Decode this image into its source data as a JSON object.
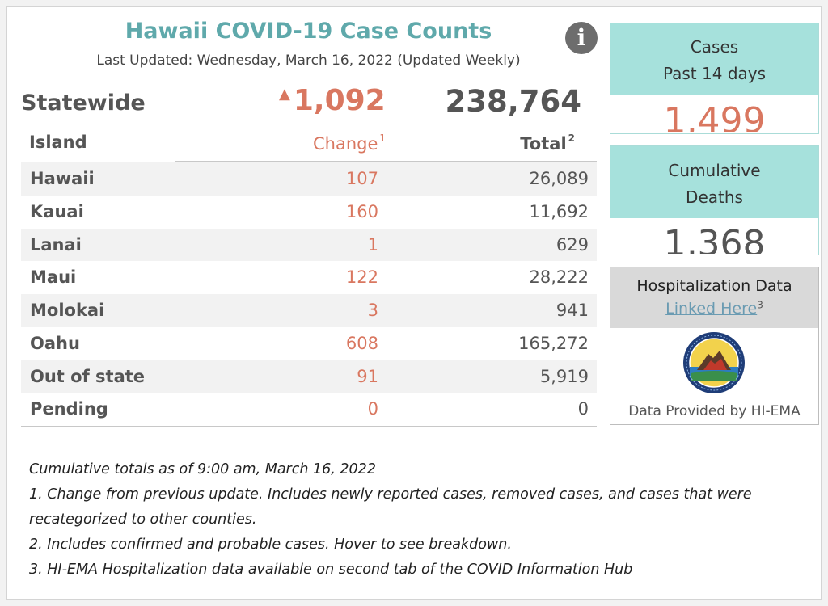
{
  "header": {
    "title": "Hawaii COVID-19 Case Counts",
    "subtitle": "Last Updated: Wednesday, March 16, 2022 (Updated Weekly)",
    "info_icon": "i"
  },
  "statewide": {
    "label": "Statewide",
    "change_arrow": "▲",
    "change": "1,092",
    "total": "238,764"
  },
  "table": {
    "columns": {
      "island": "Island",
      "change": "Change",
      "change_note": "1",
      "total": "Total",
      "total_note": "2"
    },
    "rows": [
      {
        "island": "Hawaii",
        "change": "107",
        "total": "26,089"
      },
      {
        "island": "Kauai",
        "change": "160",
        "total": "11,692"
      },
      {
        "island": "Lanai",
        "change": "1",
        "total": "629"
      },
      {
        "island": "Maui",
        "change": "122",
        "total": "28,222"
      },
      {
        "island": "Molokai",
        "change": "3",
        "total": "941"
      },
      {
        "island": "Oahu",
        "change": "608",
        "total": "165,272"
      },
      {
        "island": "Out of state",
        "change": "91",
        "total": "5,919"
      },
      {
        "island": "Pending",
        "change": "0",
        "total": "0"
      }
    ]
  },
  "cases_card": {
    "line1": "Cases",
    "line2": "Past 14 days",
    "value": "1,499"
  },
  "deaths_card": {
    "line1": "Cumulative",
    "line2": "Deaths",
    "value": "1,368"
  },
  "hospitalization": {
    "title": "Hospitalization Data",
    "link": "Linked Here",
    "link_note": "3",
    "credit": "Data Provided by HI-EMA",
    "seal_icon": "hi-ema-seal-icon"
  },
  "footnotes": [
    "Cumulative totals as of 9:00 am, March 16, 2022",
    "1. Change from previous update. Includes newly reported cases, removed cases, and cases that were",
    "recategorized to other counties.",
    "2. Includes confirmed and probable cases. Hover to see breakdown.",
    "3. HI-EMA Hospitalization data available on second tab of the COVID Information Hub"
  ],
  "colors": {
    "title": "#5fa9ab",
    "change": "#d97760",
    "card_header": "#a6e1dc",
    "text": "#555555",
    "link": "#6a9bb2"
  }
}
